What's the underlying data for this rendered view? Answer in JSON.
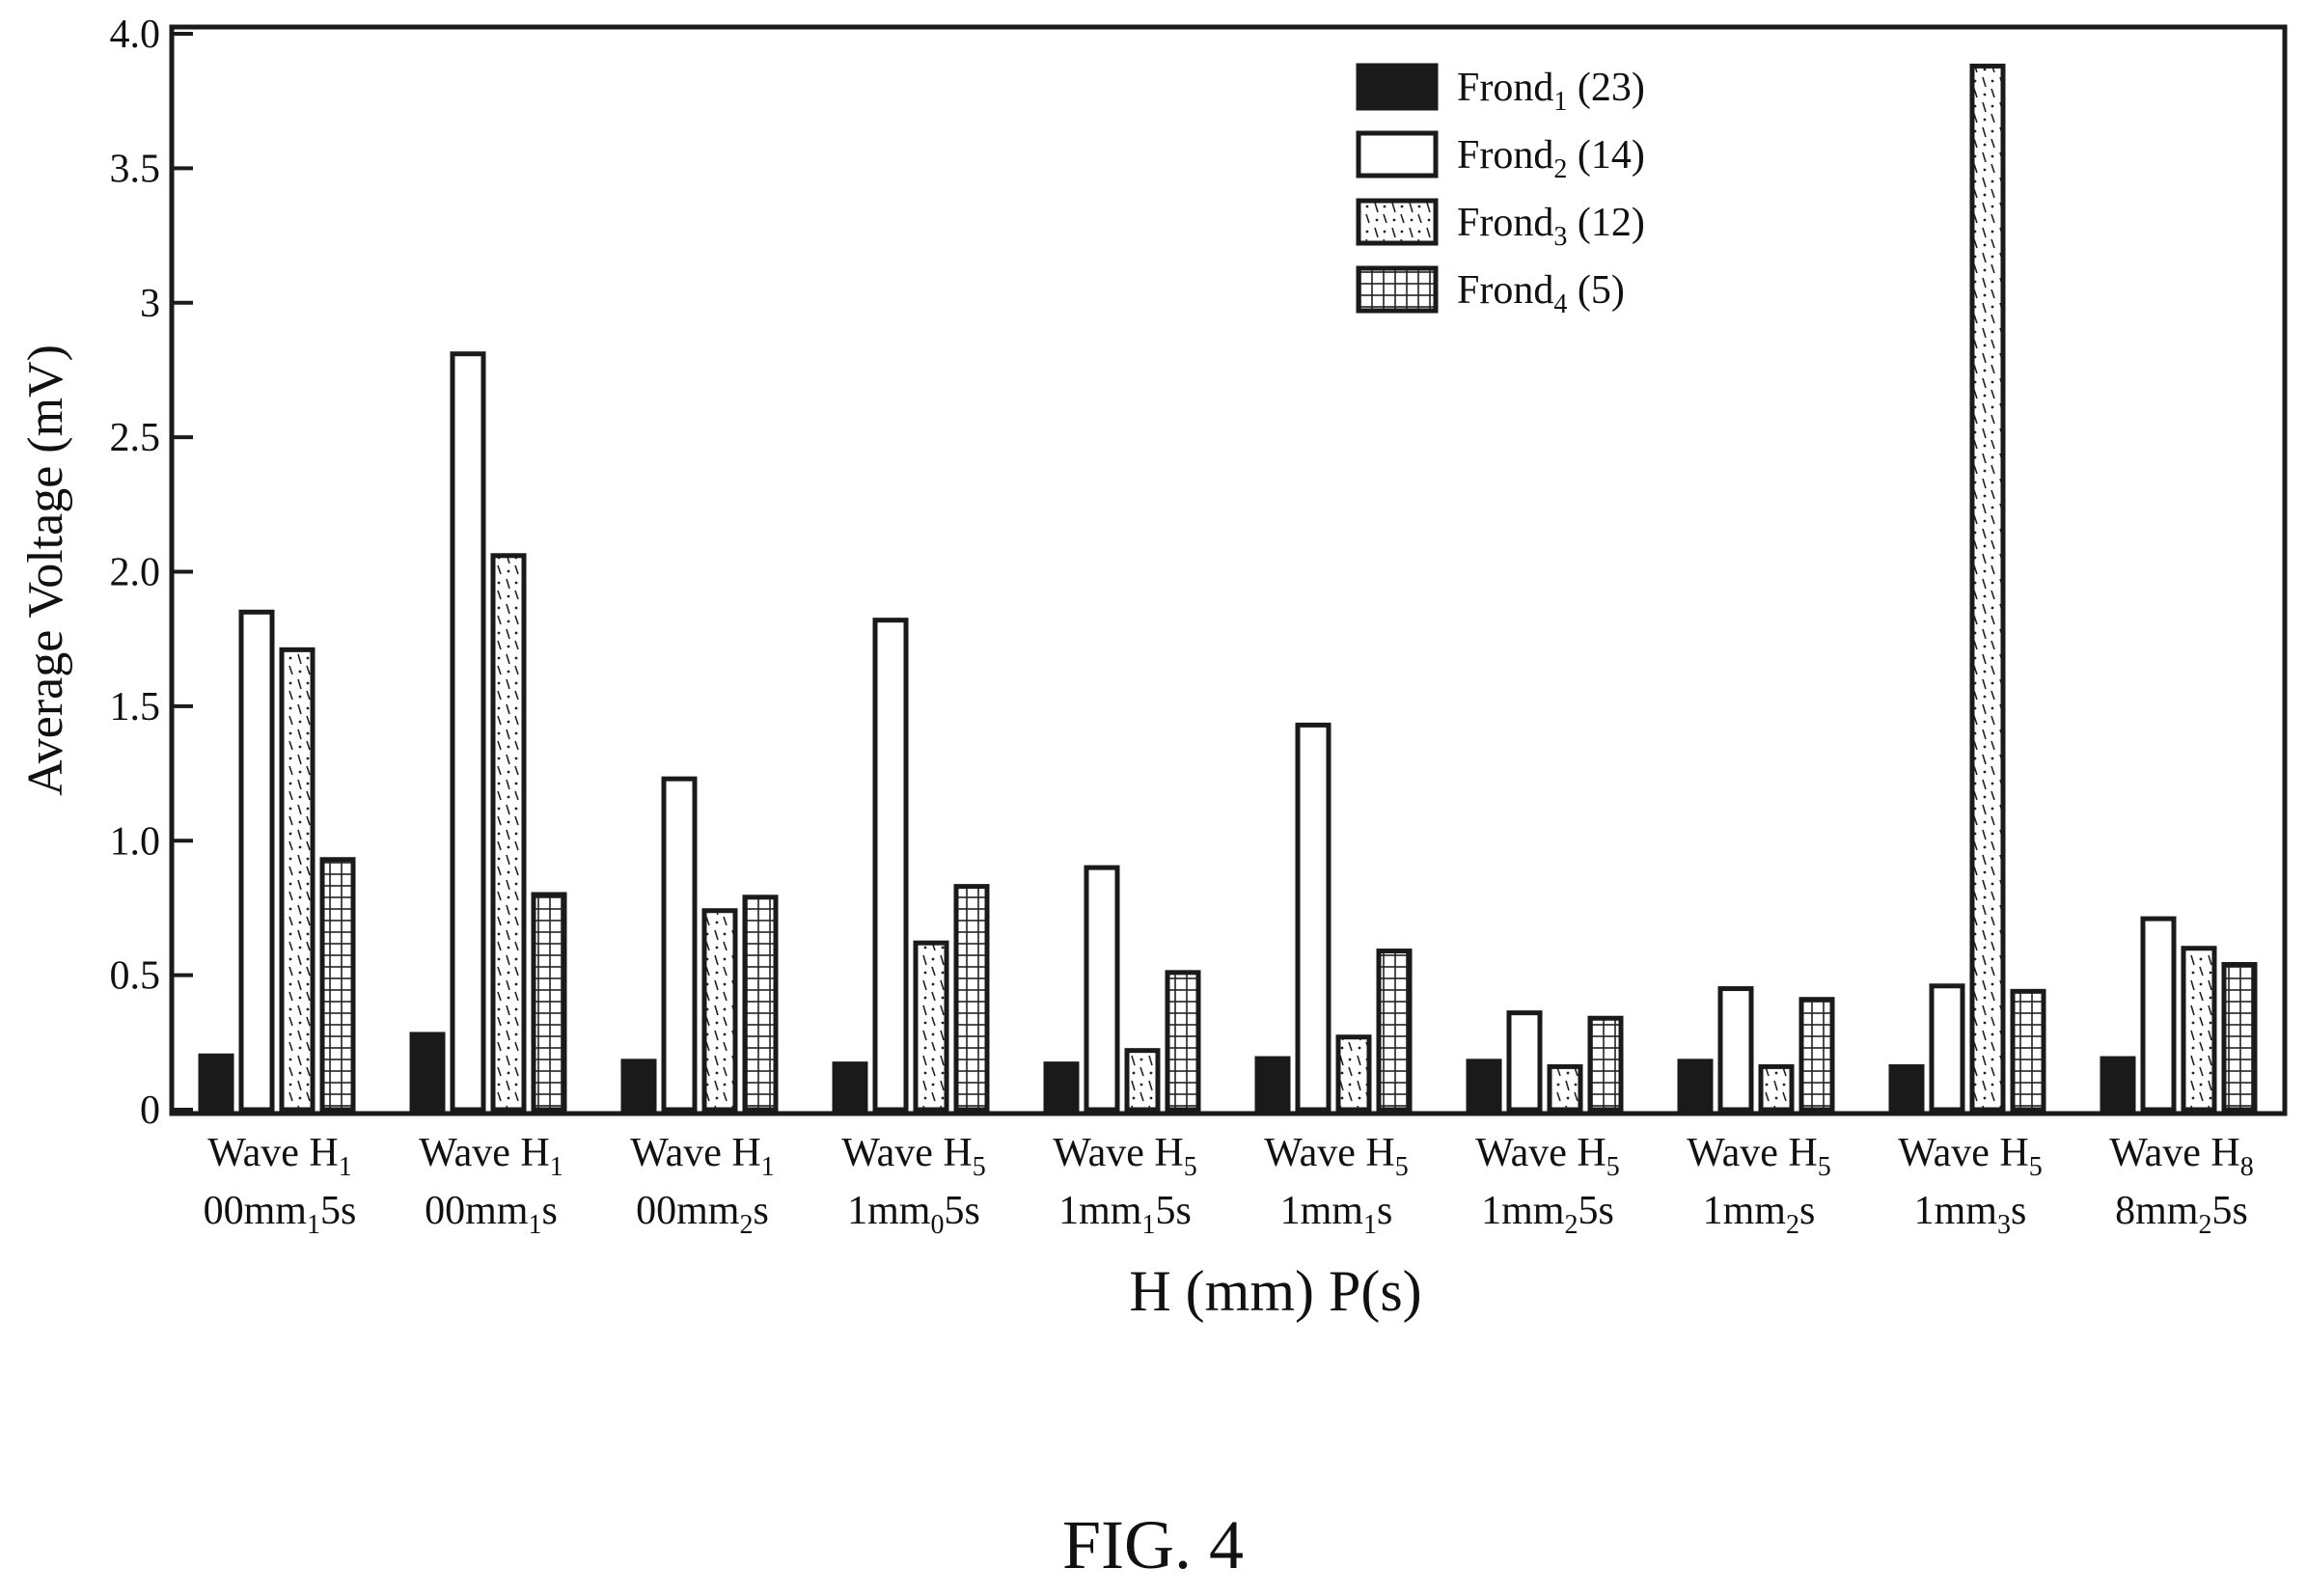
{
  "chart_data": {
    "type": "bar",
    "ylabel": "Average Voltage (mV)",
    "xlabel": "H (mm) P(s)",
    "ylim": [
      0,
      4.0
    ],
    "yticks": [
      {
        "value": 0,
        "label": "0"
      },
      {
        "value": 0.5,
        "label": "0.5"
      },
      {
        "value": 1.0,
        "label": "1.0"
      },
      {
        "value": 1.5,
        "label": "1.5"
      },
      {
        "value": 2.0,
        "label": "2.0"
      },
      {
        "value": 2.5,
        "label": "2.5"
      },
      {
        "value": 3.0,
        "label": "3"
      },
      {
        "value": 3.5,
        "label": "3.5"
      },
      {
        "value": 4.0,
        "label": "4.0"
      }
    ],
    "categories": [
      {
        "l1": "Wave H",
        "l1sub": "1",
        "l2a": "00mm",
        "l2sub": "1",
        "l2b": "5s"
      },
      {
        "l1": "Wave H",
        "l1sub": "1",
        "l2a": "00mm",
        "l2sub": "1",
        "l2b": "s"
      },
      {
        "l1": "Wave H",
        "l1sub": "1",
        "l2a": "00mm",
        "l2sub": "2",
        "l2b": "s"
      },
      {
        "l1": "Wave H",
        "l1sub": "5",
        "l2a": "1mm",
        "l2sub": "0",
        "l2b": "5s"
      },
      {
        "l1": "Wave H",
        "l1sub": "5",
        "l2a": "1mm",
        "l2sub": "1",
        "l2b": "5s"
      },
      {
        "l1": "Wave H",
        "l1sub": "5",
        "l2a": "1mm",
        "l2sub": "1",
        "l2b": "s"
      },
      {
        "l1": "Wave H",
        "l1sub": "5",
        "l2a": "1mm",
        "l2sub": "2",
        "l2b": "5s"
      },
      {
        "l1": "Wave H",
        "l1sub": "5",
        "l2a": "1mm",
        "l2sub": "2",
        "l2b": "s"
      },
      {
        "l1": "Wave H",
        "l1sub": "5",
        "l2a": "1mm",
        "l2sub": "3",
        "l2b": "s"
      },
      {
        "l1": "Wave H",
        "l1sub": "8",
        "l2a": "8mm",
        "l2sub": "2",
        "l2b": "5s"
      }
    ],
    "series": [
      {
        "name": "Frond",
        "sub": "1",
        "suffix": " (23)",
        "pattern": "solid",
        "values": [
          0.2,
          0.28,
          0.18,
          0.17,
          0.17,
          0.19,
          0.18,
          0.18,
          0.16,
          0.19
        ]
      },
      {
        "name": "Frond",
        "sub": "2",
        "suffix": " (14)",
        "pattern": "empty",
        "values": [
          1.85,
          2.81,
          1.23,
          1.82,
          0.9,
          1.43,
          0.36,
          0.45,
          0.46,
          0.71
        ]
      },
      {
        "name": "Frond",
        "sub": "3",
        "suffix": " (12)",
        "pattern": "stipple",
        "values": [
          1.71,
          2.06,
          0.74,
          0.62,
          0.22,
          0.27,
          0.16,
          0.16,
          3.88,
          0.6
        ]
      },
      {
        "name": "Frond",
        "sub": "4",
        "suffix": " (5)",
        "pattern": "grid",
        "values": [
          0.93,
          0.8,
          0.79,
          0.83,
          0.51,
          0.59,
          0.34,
          0.41,
          0.44,
          0.54
        ]
      }
    ],
    "legend_position": "top-right",
    "grid": false
  },
  "figure": {
    "caption": "FIG. 4"
  }
}
